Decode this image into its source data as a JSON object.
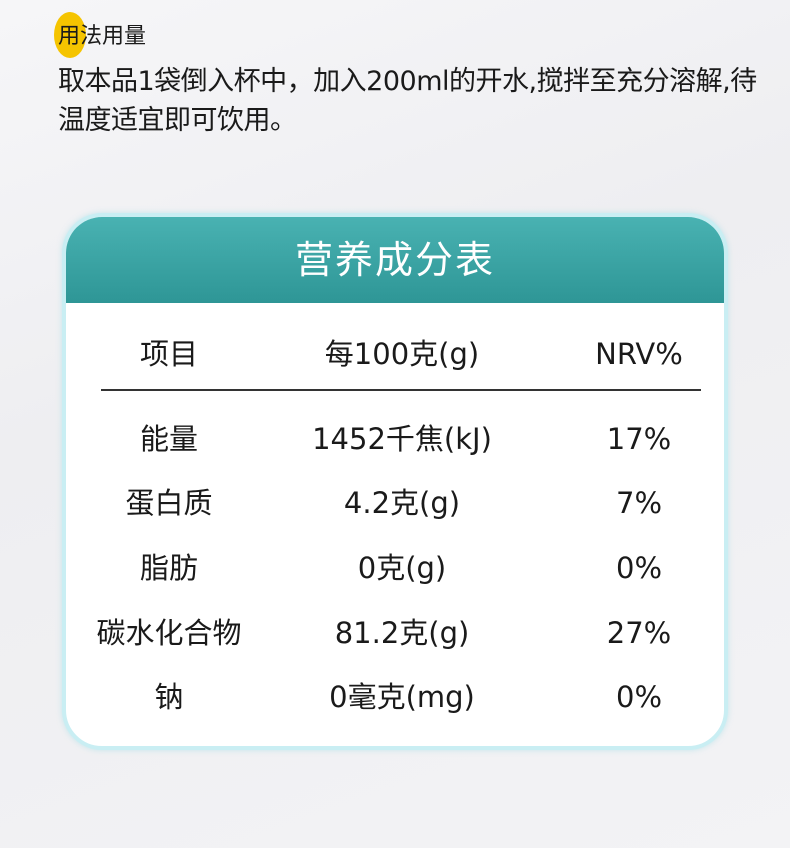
{
  "usage": {
    "title": "用法用量",
    "text": "取本品1袋倒入杯中，加入200ml的开水,搅拌至充分溶解,待温度适宜即可饮用。"
  },
  "nutrition": {
    "title": "营养成分表",
    "headers": [
      "项目",
      "每100克(g)",
      "NRV%"
    ],
    "rows": [
      [
        "能量",
        "1452千焦(kJ)",
        "17%"
      ],
      [
        "蛋白质",
        "4.2克(g)",
        "7%"
      ],
      [
        "脂肪",
        "0克(g)",
        "0%"
      ],
      [
        "碳水化合物",
        "81.2克(g)",
        "27%"
      ],
      [
        "钠",
        "0毫克(mg)",
        "0%"
      ]
    ]
  },
  "colors": {
    "accent": "#f5c400",
    "header": "#3ca5a5",
    "border": "#c9eef3"
  }
}
